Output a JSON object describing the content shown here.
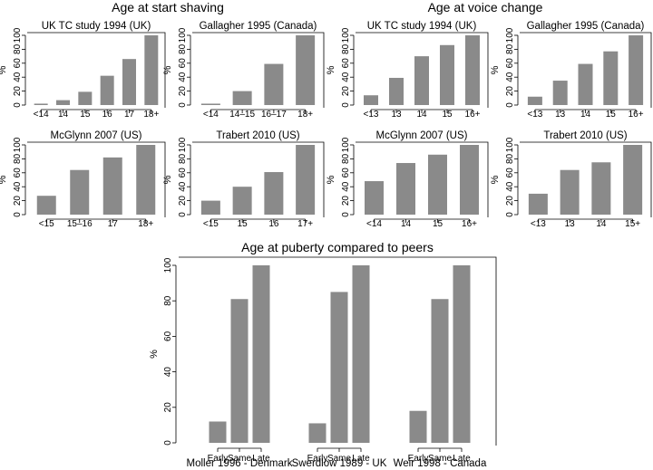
{
  "sections": {
    "shaving": {
      "title": "Age at start shaving"
    },
    "voice": {
      "title": "Age at voice change"
    },
    "puberty": {
      "title": "Age at puberty compared to peers"
    }
  },
  "colors": {
    "bar": "#8a8a8a",
    "axis": "#000000"
  },
  "chart_data": [
    {
      "id": "shave-uk-tc-1994",
      "type": "bar",
      "title": "UK TC study 1994 (UK)",
      "ylabel": "%",
      "ylim": [
        0,
        100
      ],
      "yticks": [
        0,
        20,
        40,
        60,
        80,
        100
      ],
      "categories": [
        "<14",
        "14",
        "15",
        "16",
        "17",
        "18+"
      ],
      "values": [
        2,
        7,
        19,
        42,
        66,
        100
      ]
    },
    {
      "id": "shave-gallagher-1995",
      "type": "bar",
      "title": "Gallagher 1995 (Canada)",
      "ylabel": "%",
      "ylim": [
        0,
        100
      ],
      "yticks": [
        0,
        20,
        40,
        60,
        80,
        100
      ],
      "categories": [
        "<14",
        "14–15",
        "16–17",
        "18+"
      ],
      "values": [
        2,
        20,
        59,
        100
      ]
    },
    {
      "id": "shave-mcglynn-2007",
      "type": "bar",
      "title": "McGlynn 2007 (US)",
      "ylabel": "%",
      "ylim": [
        0,
        100
      ],
      "yticks": [
        0,
        20,
        40,
        60,
        80,
        100
      ],
      "categories": [
        "<15",
        "15–16",
        "17",
        "18+"
      ],
      "values": [
        27,
        64,
        82,
        100
      ]
    },
    {
      "id": "shave-trabert-2010",
      "type": "bar",
      "title": "Trabert 2010 (US)",
      "ylabel": "%",
      "ylim": [
        0,
        100
      ],
      "yticks": [
        0,
        20,
        40,
        60,
        80,
        100
      ],
      "categories": [
        "<15",
        "15",
        "16",
        "17+"
      ],
      "values": [
        20,
        40,
        61,
        100
      ]
    },
    {
      "id": "voice-uk-tc-1994",
      "type": "bar",
      "title": "UK TC study 1994 (UK)",
      "ylabel": "%",
      "ylim": [
        0,
        100
      ],
      "yticks": [
        0,
        20,
        40,
        60,
        80,
        100
      ],
      "categories": [
        "<13",
        "13",
        "14",
        "15",
        "16+"
      ],
      "values": [
        14,
        39,
        70,
        86,
        100
      ]
    },
    {
      "id": "voice-gallagher-1995",
      "type": "bar",
      "title": "Gallagher 1995 (Canada)",
      "ylabel": "%",
      "ylim": [
        0,
        100
      ],
      "yticks": [
        0,
        20,
        40,
        60,
        80,
        100
      ],
      "categories": [
        "<13",
        "13",
        "14",
        "15",
        "16+"
      ],
      "values": [
        12,
        35,
        59,
        77,
        100
      ]
    },
    {
      "id": "voice-mcglynn-2007",
      "type": "bar",
      "title": "McGlynn 2007 (US)",
      "ylabel": "%",
      "ylim": [
        0,
        100
      ],
      "yticks": [
        0,
        20,
        40,
        60,
        80,
        100
      ],
      "categories": [
        "<14",
        "14",
        "15",
        "16+"
      ],
      "values": [
        48,
        74,
        86,
        100
      ]
    },
    {
      "id": "voice-trabert-2010",
      "type": "bar",
      "title": "Trabert 2010 (US)",
      "ylabel": "%",
      "ylim": [
        0,
        100
      ],
      "yticks": [
        0,
        20,
        40,
        60,
        80,
        100
      ],
      "categories": [
        "<13",
        "13",
        "14",
        "15+"
      ],
      "values": [
        30,
        64,
        75,
        100
      ]
    },
    {
      "id": "puberty-peers",
      "type": "bar",
      "title": "Age at puberty compared to peers",
      "ylabel": "%",
      "ylim": [
        0,
        100
      ],
      "yticks": [
        0,
        20,
        40,
        60,
        80,
        100
      ],
      "categories": [
        "Early",
        "Same",
        "Late"
      ],
      "groups": [
        {
          "name": "Moller 1996 - Denmark",
          "values": [
            12,
            81,
            100
          ]
        },
        {
          "name": "Swerdlow 1989 - UK",
          "values": [
            11,
            85,
            100
          ]
        },
        {
          "name": "Weir 1998 - Canada",
          "values": [
            18,
            81,
            100
          ]
        }
      ]
    }
  ]
}
